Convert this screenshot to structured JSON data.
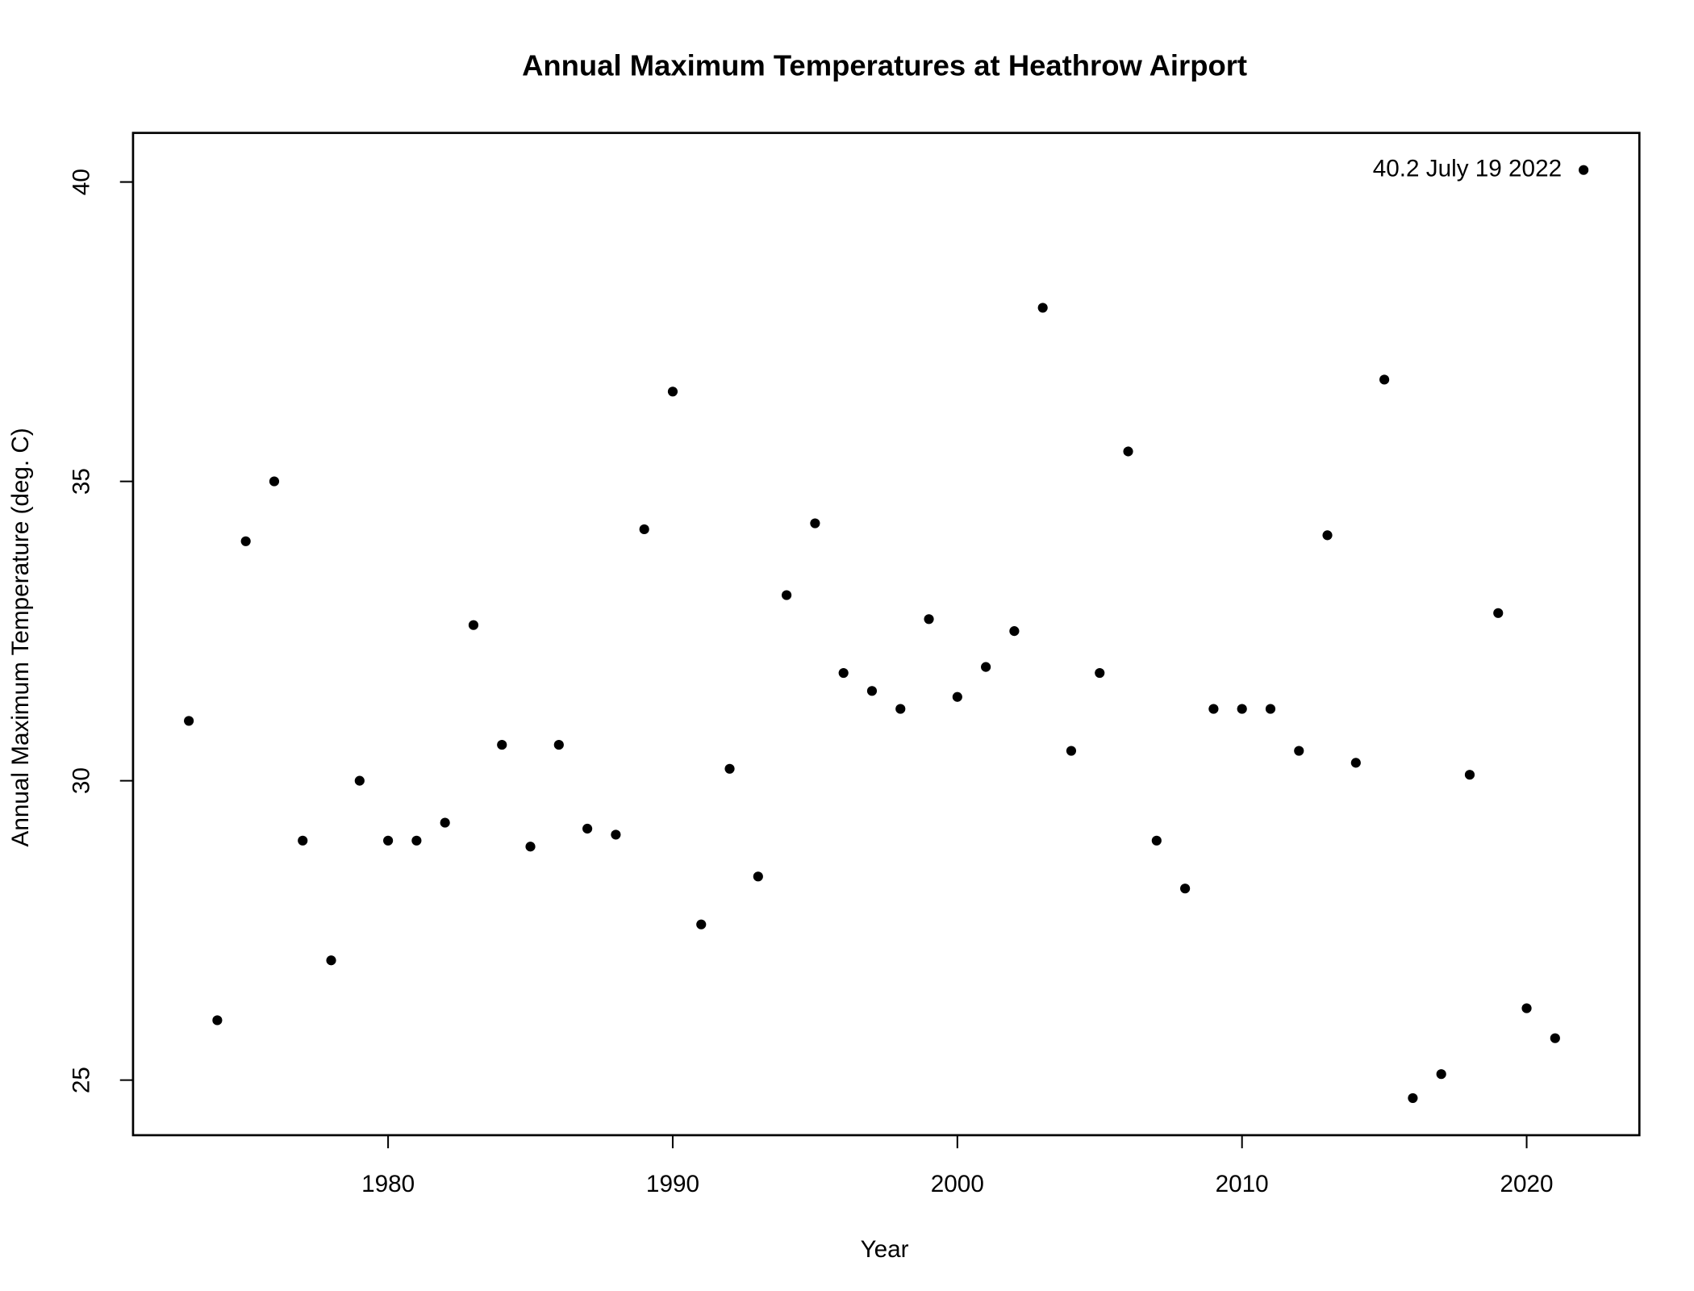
{
  "chart_data": {
    "type": "scatter",
    "title": "Annual Maximum Temperatures at Heathrow Airport",
    "x_label": "Year",
    "y_label": "Annual Maximum Temperature (deg. C)",
    "annotation": "40.2 July 19 2022",
    "color": "#000000",
    "x": [
      1973,
      1974,
      1975,
      1976,
      1977,
      1978,
      1979,
      1980,
      1981,
      1982,
      1983,
      1984,
      1985,
      1986,
      1987,
      1988,
      1989,
      1990,
      1991,
      1992,
      1993,
      1994,
      1995,
      1996,
      1997,
      1998,
      1999,
      2000,
      2001,
      2002,
      2003,
      2004,
      2005,
      2006,
      2007,
      2008,
      2009,
      2010,
      2011,
      2012,
      2013,
      2014,
      2015,
      2016,
      2017,
      2018,
      2019,
      2020,
      2021,
      2022
    ],
    "values": [
      31.0,
      26.0,
      34.0,
      35.0,
      29.0,
      27.0,
      30.0,
      29.0,
      29.0,
      29.3,
      32.6,
      30.6,
      28.9,
      30.6,
      29.2,
      29.1,
      34.2,
      36.5,
      27.6,
      30.2,
      28.4,
      33.1,
      34.3,
      31.8,
      31.5,
      31.2,
      32.7,
      31.4,
      31.9,
      32.5,
      37.9,
      30.5,
      31.8,
      35.5,
      29.0,
      28.2,
      31.2,
      31.2,
      31.2,
      30.5,
      34.1,
      30.3,
      36.7,
      24.7,
      25.1,
      30.1,
      32.8,
      26.2,
      25.7,
      40.2
    ],
    "xlim": [
      1971.04,
      2023.96
    ],
    "ylim": [
      24.08,
      40.82
    ],
    "xticks": [
      1980,
      1990,
      2000,
      2010,
      2020
    ],
    "yticks": [
      25,
      30,
      35,
      40
    ],
    "grid": false
  }
}
